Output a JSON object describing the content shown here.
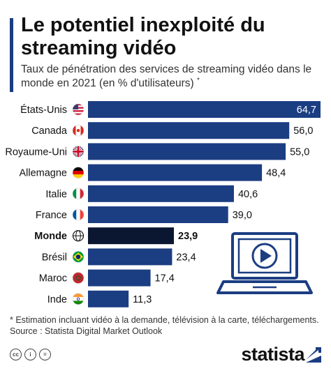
{
  "header": {
    "title": "Le potentiel inexploité du streaming vidéo",
    "subtitle": "Taux de pénétration des services de streaming vidéo dans le monde en 2021 (en % d'utilisateurs)",
    "subtitle_marker": "*"
  },
  "footer": {
    "footnote": "* Estimation incluant vidéo à la demande, télévision à la carte, téléchargements.",
    "source": "Source : Statista Digital Market Outlook",
    "brand": "statista",
    "license_icons": [
      "cc",
      "i",
      "="
    ]
  },
  "colors": {
    "bar": "#1b3d82",
    "highlight_bar": "#0b1730",
    "accent": "#1b3d82"
  },
  "icons": [
    "flag-us-icon",
    "flag-canada-icon",
    "flag-uk-icon",
    "flag-germany-icon",
    "flag-italy-icon",
    "flag-france-icon",
    "globe-icon",
    "flag-brazil-icon",
    "flag-morocco-icon",
    "flag-india-icon",
    "laptop-play-icon"
  ],
  "chart_data": {
    "type": "bar",
    "orientation": "horizontal",
    "title": "",
    "xlabel": "",
    "ylabel": "",
    "xlim": [
      0,
      64.7
    ],
    "grid": false,
    "legend": "none",
    "highlight": "Monde",
    "categories": [
      "États-Unis",
      "Canada",
      "Royaume-Uni",
      "Allemagne",
      "Italie",
      "France",
      "Monde",
      "Brésil",
      "Maroc",
      "Inde"
    ],
    "values": [
      64.7,
      56.0,
      55.0,
      48.4,
      40.6,
      39.0,
      23.9,
      23.4,
      17.4,
      11.3
    ],
    "value_labels": [
      "64,7",
      "56,0",
      "55,0",
      "48,4",
      "40,6",
      "39,0",
      "23,9",
      "23,4",
      "17,4",
      "11,3"
    ],
    "flags": [
      "us",
      "ca",
      "gb",
      "de",
      "it",
      "fr",
      "globe",
      "br",
      "ma",
      "in"
    ]
  }
}
